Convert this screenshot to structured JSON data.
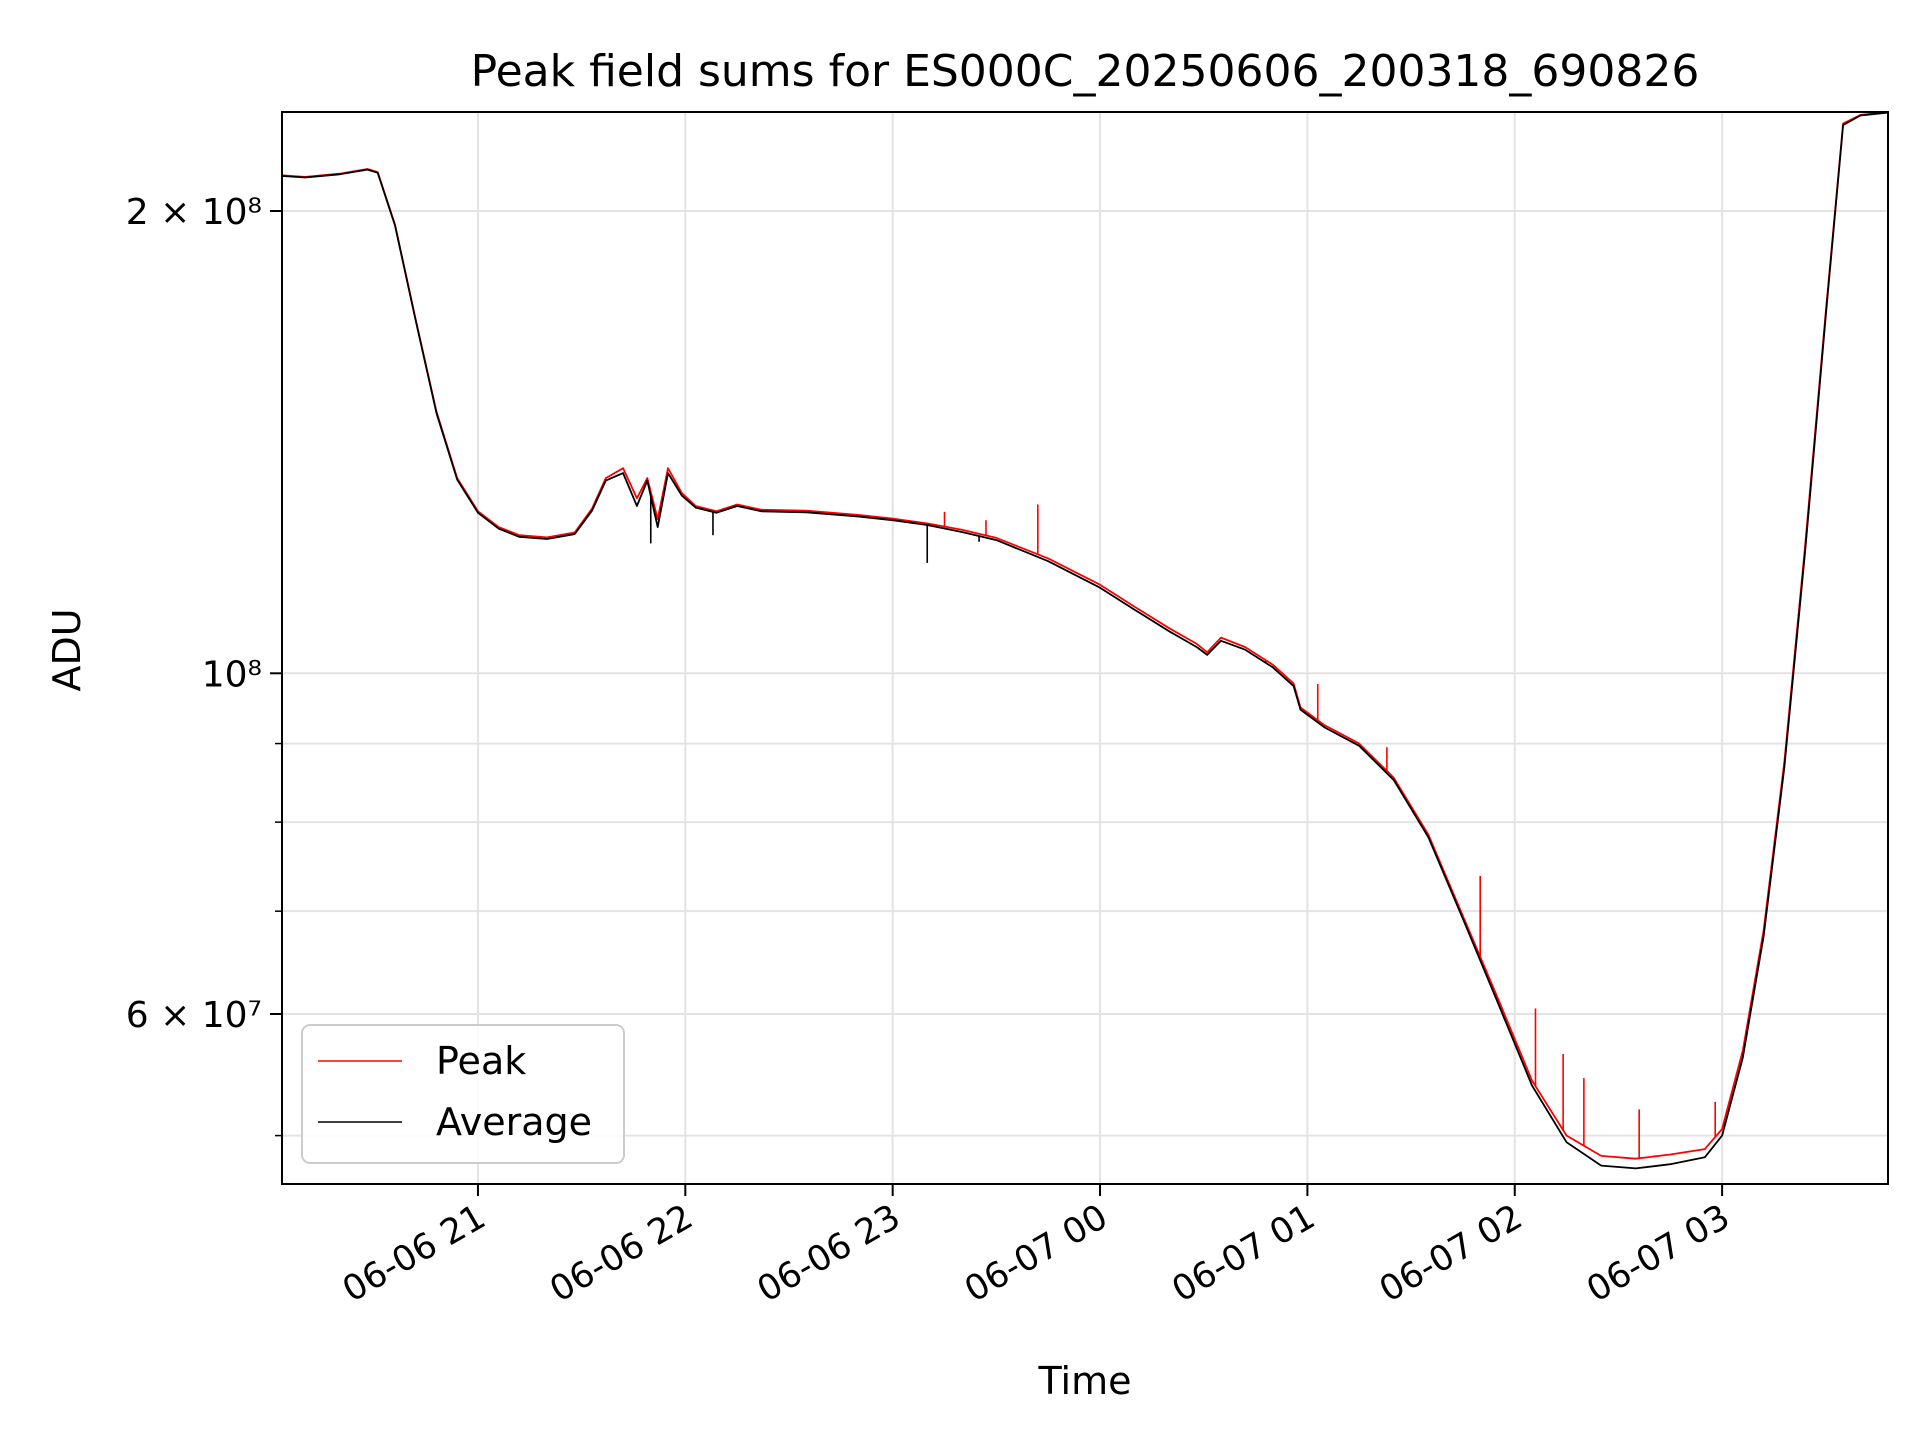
{
  "chart_data": {
    "type": "line",
    "title": "Peak field sums for ES000C_20250606_200318_690826",
    "xlabel": "Time",
    "ylabel": "ADU",
    "yscale": "log",
    "ylim": [
      46500000,
      232000000
    ],
    "xlim": [
      "2025-06-06 20:03:18",
      "2025-06-07 03:48:00"
    ],
    "grid": true,
    "legend_position": "lower left",
    "x_ticks": [
      {
        "label": "06-06 21",
        "value": "2025-06-06 21:00"
      },
      {
        "label": "06-06 22",
        "value": "2025-06-06 22:00"
      },
      {
        "label": "06-06 23",
        "value": "2025-06-06 23:00"
      },
      {
        "label": "06-07 00",
        "value": "2025-06-07 00:00"
      },
      {
        "label": "06-07 01",
        "value": "2025-06-07 01:00"
      },
      {
        "label": "06-07 02",
        "value": "2025-06-07 02:00"
      },
      {
        "label": "06-07 03",
        "value": "2025-06-07 03:00"
      }
    ],
    "y_ticks": [
      {
        "label": "2 × 10⁸",
        "value": 200000000
      },
      {
        "label": "10⁸",
        "value": 100000000
      },
      {
        "label": "6 × 10⁷",
        "value": 60000000
      }
    ],
    "series": [
      {
        "name": "Peak",
        "color": "#ff0000",
        "points": [
          [
            "2025-06-06 20:03",
            211000000
          ],
          [
            "2025-06-06 20:10",
            210500000
          ],
          [
            "2025-06-06 20:20",
            211500000
          ],
          [
            "2025-06-06 20:28",
            213000000
          ],
          [
            "2025-06-06 20:31",
            212000000
          ],
          [
            "2025-06-06 20:36",
            196000000
          ],
          [
            "2025-06-06 20:42",
            170000000
          ],
          [
            "2025-06-06 20:48",
            148000000
          ],
          [
            "2025-06-06 20:54",
            134000000
          ],
          [
            "2025-06-06 21:00",
            127500000
          ],
          [
            "2025-06-06 21:06",
            124500000
          ],
          [
            "2025-06-06 21:12",
            123000000
          ],
          [
            "2025-06-06 21:20",
            122600000
          ],
          [
            "2025-06-06 21:28",
            123500000
          ],
          [
            "2025-06-06 21:33",
            128000000
          ],
          [
            "2025-06-06 21:37",
            134000000
          ],
          [
            "2025-06-06 21:42",
            136000000
          ],
          [
            "2025-06-06 21:46",
            130000000
          ],
          [
            "2025-06-06 21:49",
            134000000
          ],
          [
            "2025-06-06 21:52",
            126000000
          ],
          [
            "2025-06-06 21:55",
            136000000
          ],
          [
            "2025-06-06 21:59",
            131000000
          ],
          [
            "2025-06-06 22:03",
            128500000
          ],
          [
            "2025-06-06 22:09",
            127500000
          ],
          [
            "2025-06-06 22:15",
            128800000
          ],
          [
            "2025-06-06 22:22",
            127800000
          ],
          [
            "2025-06-06 22:35",
            127600000
          ],
          [
            "2025-06-06 22:50",
            126800000
          ],
          [
            "2025-06-06 23:00",
            126100000
          ],
          [
            "2025-06-06 23:10",
            125200000
          ],
          [
            "2025-06-06 23:20",
            124000000
          ],
          [
            "2025-06-06 23:30",
            122500000
          ],
          [
            "2025-06-06 23:45",
            118800000
          ],
          [
            "2025-06-07 00:00",
            114200000
          ],
          [
            "2025-06-07 00:10",
            110500000
          ],
          [
            "2025-06-07 00:20",
            107000000
          ],
          [
            "2025-06-07 00:28",
            104500000
          ],
          [
            "2025-06-07 00:31",
            103200000
          ],
          [
            "2025-06-07 00:35",
            105500000
          ],
          [
            "2025-06-07 00:42",
            104000000
          ],
          [
            "2025-06-07 00:50",
            101300000
          ],
          [
            "2025-06-07 00:56",
            98500000
          ],
          [
            "2025-06-07 00:58",
            95000000
          ],
          [
            "2025-06-07 01:05",
            92500000
          ],
          [
            "2025-06-07 01:15",
            90000000
          ],
          [
            "2025-06-07 01:25",
            85500000
          ],
          [
            "2025-06-07 01:35",
            78500000
          ],
          [
            "2025-06-07 01:45",
            69500000
          ],
          [
            "2025-06-07 01:55",
            61500000
          ],
          [
            "2025-06-07 02:05",
            54300000
          ],
          [
            "2025-06-07 02:15",
            50000000
          ],
          [
            "2025-06-07 02:25",
            48500000
          ],
          [
            "2025-06-07 02:35",
            48300000
          ],
          [
            "2025-06-07 02:45",
            48600000
          ],
          [
            "2025-06-07 02:55",
            49000000
          ],
          [
            "2025-06-07 03:00",
            50500000
          ],
          [
            "2025-06-07 03:06",
            56800000
          ],
          [
            "2025-06-07 03:12",
            68000000
          ],
          [
            "2025-06-07 03:18",
            87500000
          ],
          [
            "2025-06-07 03:24",
            121000000
          ],
          [
            "2025-06-07 03:30",
            172000000
          ],
          [
            "2025-06-07 03:35",
            228000000
          ],
          [
            "2025-06-07 03:40",
            231000000
          ],
          [
            "2025-06-07 03:48",
            232000000
          ]
        ],
        "spikes": [
          [
            "2025-06-06 23:15",
            127400000
          ],
          [
            "2025-06-06 23:27",
            125800000
          ],
          [
            "2025-06-06 23:42",
            128800000
          ],
          [
            "2025-06-07 00:48",
            101600000
          ],
          [
            "2025-06-07 01:03",
            98400000
          ],
          [
            "2025-06-07 01:23",
            89500000
          ],
          [
            "2025-06-07 01:50",
            73800000
          ],
          [
            "2025-06-07 02:06",
            60500000
          ],
          [
            "2025-06-07 02:14",
            56500000
          ],
          [
            "2025-06-07 02:20",
            54500000
          ],
          [
            "2025-06-07 02:36",
            52000000
          ],
          [
            "2025-06-07 02:58",
            52600000
          ]
        ]
      },
      {
        "name": "Average",
        "color": "#000000",
        "points": [
          [
            "2025-06-06 20:03",
            210800000
          ],
          [
            "2025-06-06 20:10",
            210300000
          ],
          [
            "2025-06-06 20:20",
            211300000
          ],
          [
            "2025-06-06 20:28",
            212800000
          ],
          [
            "2025-06-06 20:31",
            211800000
          ],
          [
            "2025-06-06 20:36",
            195700000
          ],
          [
            "2025-06-06 20:42",
            169700000
          ],
          [
            "2025-06-06 20:48",
            147700000
          ],
          [
            "2025-06-06 20:54",
            133700000
          ],
          [
            "2025-06-06 21:00",
            127200000
          ],
          [
            "2025-06-06 21:06",
            124200000
          ],
          [
            "2025-06-06 21:12",
            122700000
          ],
          [
            "2025-06-06 21:20",
            122300000
          ],
          [
            "2025-06-06 21:28",
            123200000
          ],
          [
            "2025-06-06 21:33",
            127600000
          ],
          [
            "2025-06-06 21:37",
            133500000
          ],
          [
            "2025-06-06 21:42",
            135000000
          ],
          [
            "2025-06-06 21:46",
            128500000
          ],
          [
            "2025-06-06 21:49",
            133500000
          ],
          [
            "2025-06-06 21:52",
            124500000
          ],
          [
            "2025-06-06 21:55",
            135000000
          ],
          [
            "2025-06-06 21:59",
            130500000
          ],
          [
            "2025-06-06 22:03",
            128200000
          ],
          [
            "2025-06-06 22:09",
            127200000
          ],
          [
            "2025-06-06 22:15",
            128500000
          ],
          [
            "2025-06-06 22:22",
            127500000
          ],
          [
            "2025-06-06 22:35",
            127300000
          ],
          [
            "2025-06-06 22:50",
            126500000
          ],
          [
            "2025-06-06 23:00",
            125800000
          ],
          [
            "2025-06-06 23:10",
            124900000
          ],
          [
            "2025-06-06 23:20",
            123600000
          ],
          [
            "2025-06-06 23:30",
            122100000
          ],
          [
            "2025-06-06 23:45",
            118300000
          ],
          [
            "2025-06-07 00:00",
            113700000
          ],
          [
            "2025-06-07 00:10",
            110000000
          ],
          [
            "2025-06-07 00:20",
            106500000
          ],
          [
            "2025-06-07 00:28",
            104000000
          ],
          [
            "2025-06-07 00:31",
            102800000
          ],
          [
            "2025-06-07 00:35",
            105000000
          ],
          [
            "2025-06-07 00:42",
            103600000
          ],
          [
            "2025-06-07 00:50",
            100900000
          ],
          [
            "2025-06-07 00:56",
            98100000
          ],
          [
            "2025-06-07 00:58",
            94700000
          ],
          [
            "2025-06-07 01:05",
            92200000
          ],
          [
            "2025-06-07 01:15",
            89700000
          ],
          [
            "2025-06-07 01:25",
            85200000
          ],
          [
            "2025-06-07 01:35",
            78200000
          ],
          [
            "2025-06-07 01:45",
            69200000
          ],
          [
            "2025-06-07 01:55",
            61100000
          ],
          [
            "2025-06-07 02:05",
            53900000
          ],
          [
            "2025-06-07 02:15",
            49500000
          ],
          [
            "2025-06-07 02:25",
            47800000
          ],
          [
            "2025-06-07 02:35",
            47600000
          ],
          [
            "2025-06-07 02:45",
            47900000
          ],
          [
            "2025-06-07 02:55",
            48400000
          ],
          [
            "2025-06-07 03:00",
            50000000
          ],
          [
            "2025-06-07 03:06",
            56200000
          ],
          [
            "2025-06-07 03:12",
            67400000
          ],
          [
            "2025-06-07 03:18",
            86800000
          ],
          [
            "2025-06-07 03:24",
            120000000
          ],
          [
            "2025-06-07 03:30",
            171000000
          ],
          [
            "2025-06-07 03:35",
            227500000
          ],
          [
            "2025-06-07 03:40",
            230800000
          ],
          [
            "2025-06-07 03:48",
            231800000
          ]
        ],
        "dips": [
          [
            "2025-06-06 21:50",
            121500000
          ],
          [
            "2025-06-06 22:08",
            123000000
          ],
          [
            "2025-06-06 23:10",
            118000000
          ],
          [
            "2025-06-06 23:25",
            121800000
          ]
        ]
      }
    ]
  }
}
